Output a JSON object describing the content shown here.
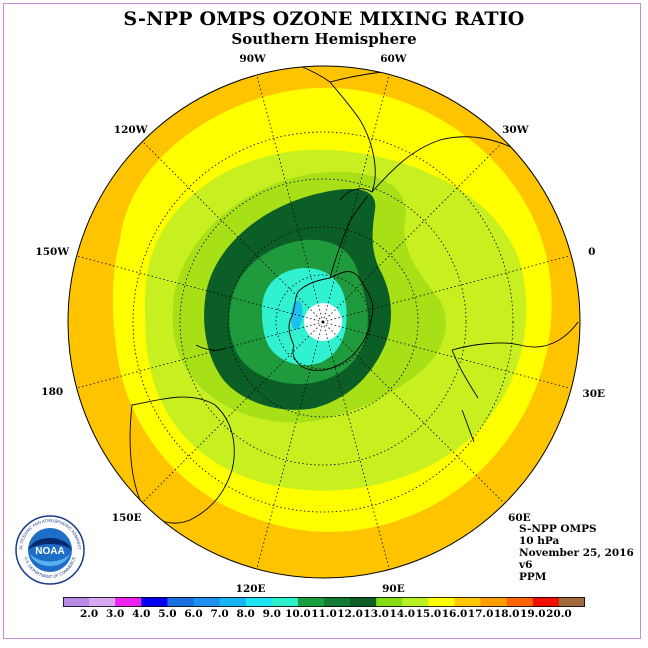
{
  "title": "S-NPP OMPS OZONE MIXING RATIO",
  "subtitle": "Southern Hemisphere",
  "longitude_labels": [
    "90W",
    "60W",
    "30W",
    "0",
    "30E",
    "60E",
    "90E",
    "120E",
    "150E",
    "180",
    "150W",
    "120W"
  ],
  "info": {
    "instrument": "S-NPP OMPS",
    "pressure": "10 hPa",
    "date": "November 25, 2016",
    "version": "v6",
    "units": "PPM"
  },
  "logo": {
    "text": "NOAA",
    "ring_text": "NATIONAL OCEANIC AND ATMOSPHERIC ADMINISTRATION",
    "ring_text_bottom": "U.S. DEPARTMENT OF COMMERCE"
  },
  "colorbar": {
    "labels": [
      "2.0",
      "3.0",
      "4.0",
      "5.0",
      "6.0",
      "7.0",
      "8.0",
      "9.0",
      "10.0",
      "11.0",
      "12.0",
      "13.0",
      "14.0",
      "15.0",
      "16.0",
      "17.0",
      "18.0",
      "19.0",
      "20.0"
    ],
    "colors": [
      "#b48ae6",
      "#d8a8f0",
      "#ee22ee",
      "#0000ee",
      "#1a6ee0",
      "#1e90f0",
      "#18b4f4",
      "#1ce4f0",
      "#2ef0c8",
      "#18a040",
      "#127a32",
      "#0c5e26",
      "#86dc14",
      "#b8f020",
      "#ffff00",
      "#ffc800",
      "#ff9c00",
      "#ff6400",
      "#f01000",
      "#a06a3e"
    ]
  },
  "map_colors": {
    "outer": "#ffc400",
    "yellow": "#ffff00",
    "yellowgreen": "#c8f020",
    "lightgreen": "#a8e018",
    "green1": "#1f9a3c",
    "green2": "#0b5e26",
    "cyan": "#30f2d0",
    "blue": "#1ec0f0",
    "pole": "#ffffff"
  }
}
